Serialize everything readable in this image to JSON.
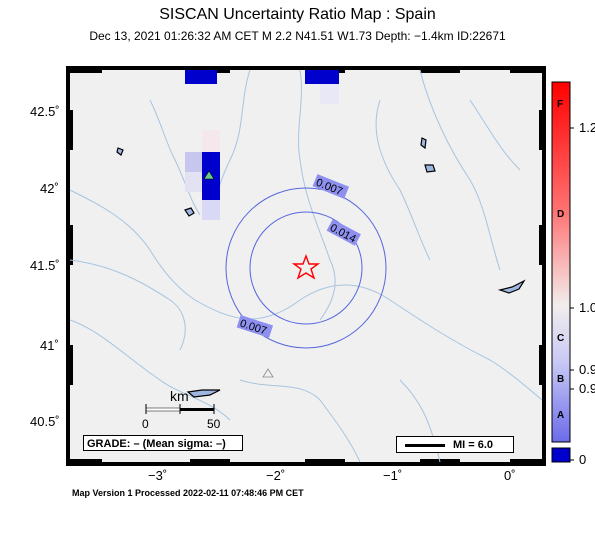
{
  "title": "SISCAN Uncertainty Ratio Map : Spain",
  "subtitle": "Dec 13, 2021 01:26:32 AM CET   M 2.2    N41.51 W1.73    Depth: −1.4km    ID:22671",
  "footer": "Map Version 1 Processed 2022-02-11 07:48:46 PM CET",
  "map": {
    "lat_ticks": [
      "42.5˚",
      "42˚",
      "41.5˚",
      "41˚",
      "40.5˚"
    ],
    "lon_ticks": [
      "−3˚",
      "−2˚",
      "−1˚",
      "0˚"
    ],
    "contour_labels": [
      "0.007",
      "0.014",
      "0.007"
    ],
    "scale": {
      "unit": "km",
      "ticks": [
        "0",
        "50"
      ]
    },
    "grade_text": "GRADE: – (Mean sigma: –)",
    "mi_text": "MI = 6.0"
  },
  "colorbar": {
    "values": [
      "1.2",
      "1.0",
      "0.9",
      "0.9",
      "0"
    ],
    "grades": [
      "F",
      "D",
      "C",
      "B",
      "A"
    ]
  },
  "colors": {
    "epicenter": "#ff0000",
    "contour": "#5566dd",
    "high": "#0000cc",
    "station": "#66cc88"
  }
}
